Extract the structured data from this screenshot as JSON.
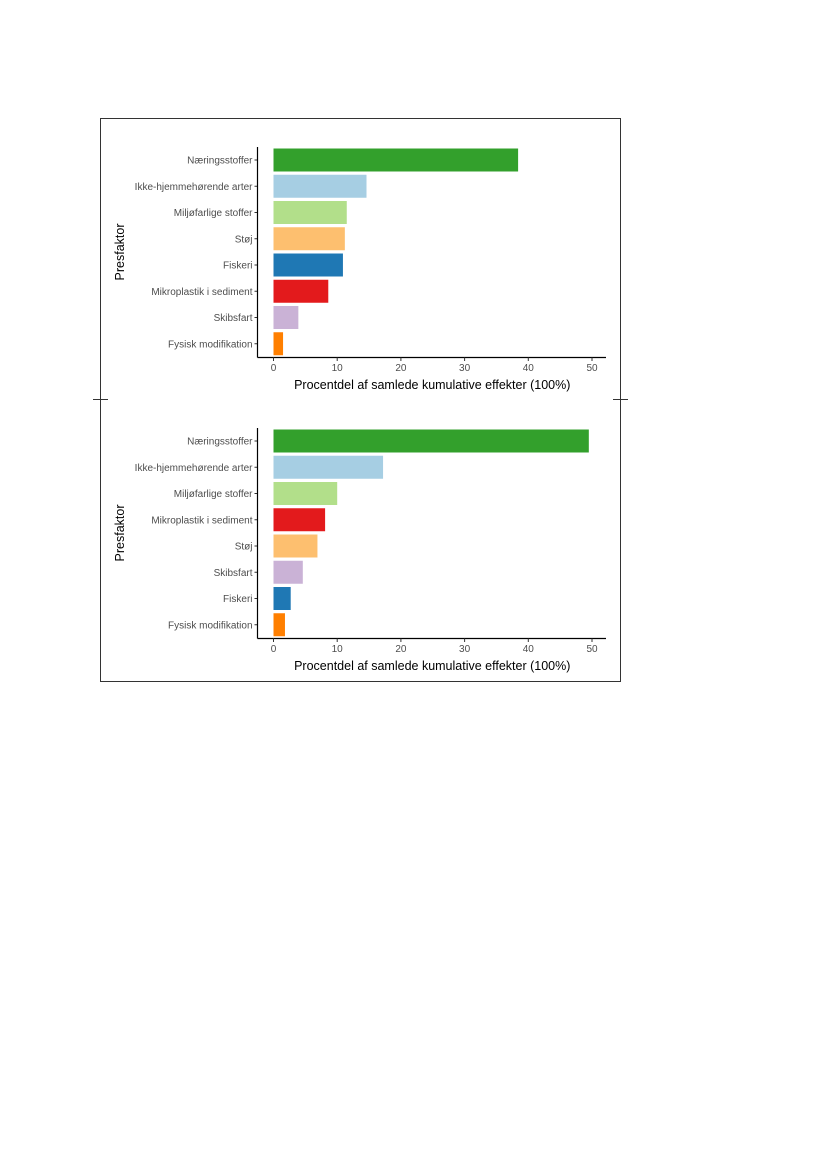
{
  "chart_data": [
    {
      "type": "bar",
      "orientation": "horizontal",
      "xlabel": "Procentdel af samlede kumulative effekter (100%)",
      "ylabel": "Presfaktor",
      "xlim": [
        0,
        50
      ],
      "xticks": [
        0,
        10,
        20,
        30,
        40,
        50
      ],
      "grid": false,
      "categories": [
        "Næringsstoffer",
        "Ikke-hjemmehørende arter",
        "Miljøfarlige stoffer",
        "Støj",
        "Fiskeri",
        "Mikroplastik i sediment",
        "Skibsfart",
        "Fysisk modifikation"
      ],
      "values": [
        38.4,
        14.6,
        11.5,
        11.2,
        10.9,
        8.6,
        3.9,
        1.5
      ],
      "colors": [
        "#33a02c",
        "#a6cee3",
        "#b2df8a",
        "#fdbf6f",
        "#1f78b4",
        "#e31a1c",
        "#cab2d6",
        "#ff7f00"
      ]
    },
    {
      "type": "bar",
      "orientation": "horizontal",
      "xlabel": "Procentdel af samlede kumulative effekter (100%)",
      "ylabel": "Presfaktor",
      "xlim": [
        0,
        50
      ],
      "xticks": [
        0,
        10,
        20,
        30,
        40,
        50
      ],
      "grid": false,
      "categories": [
        "Næringsstoffer",
        "Ikke-hjemmehørende arter",
        "Miljøfarlige stoffer",
        "Mikroplastik i sediment",
        "Støj",
        "Skibsfart",
        "Fiskeri",
        "Fysisk modifikation"
      ],
      "values": [
        49.5,
        17.2,
        10.0,
        8.1,
        6.9,
        4.6,
        2.7,
        1.8
      ],
      "colors": [
        "#33a02c",
        "#a6cee3",
        "#b2df8a",
        "#e31a1c",
        "#fdbf6f",
        "#cab2d6",
        "#1f78b4",
        "#ff7f00"
      ]
    }
  ]
}
